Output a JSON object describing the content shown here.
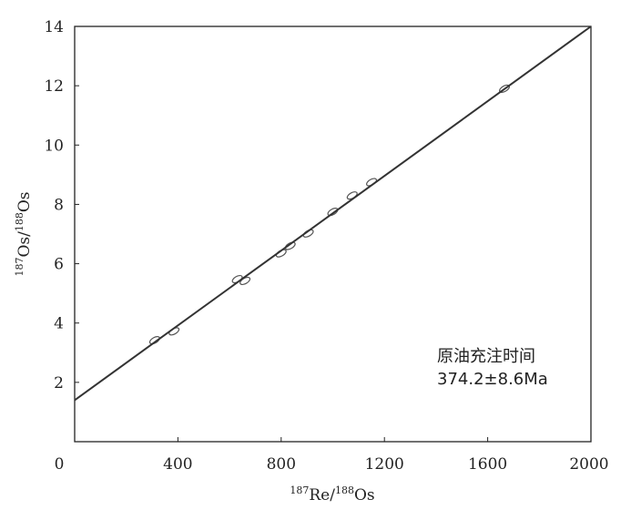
{
  "chart_data": {
    "type": "scatter",
    "title": "",
    "xlabel": {
      "sup1": "187",
      "main1": "Re/",
      "sup2": "188",
      "main2": "Os"
    },
    "ylabel": {
      "sup1": "187",
      "main1": "Os/",
      "sup2": "188",
      "main2": "Os"
    },
    "xlim": [
      0,
      2000
    ],
    "ylim": [
      0,
      14
    ],
    "x_ticks": [
      0,
      400,
      800,
      1200,
      1600,
      2000
    ],
    "y_ticks": [
      2,
      4,
      6,
      8,
      10,
      12,
      14
    ],
    "grid": false,
    "points": [
      {
        "x": 310,
        "y": 3.42
      },
      {
        "x": 385,
        "y": 3.72
      },
      {
        "x": 630,
        "y": 5.48
      },
      {
        "x": 660,
        "y": 5.42
      },
      {
        "x": 800,
        "y": 6.35
      },
      {
        "x": 835,
        "y": 6.6
      },
      {
        "x": 905,
        "y": 7.02
      },
      {
        "x": 1000,
        "y": 7.75
      },
      {
        "x": 1075,
        "y": 8.3
      },
      {
        "x": 1150,
        "y": 8.75
      },
      {
        "x": 1665,
        "y": 11.9
      }
    ],
    "regression_line": {
      "x": [
        0,
        2000
      ],
      "y": [
        1.4,
        14.0
      ]
    },
    "annotation": {
      "line1": "原油充注时间",
      "line2": "374.2±8.6Ma",
      "position": "bottom-right"
    },
    "colors": {
      "line": "#333333",
      "points": "#555555",
      "axis": "#222222"
    }
  }
}
